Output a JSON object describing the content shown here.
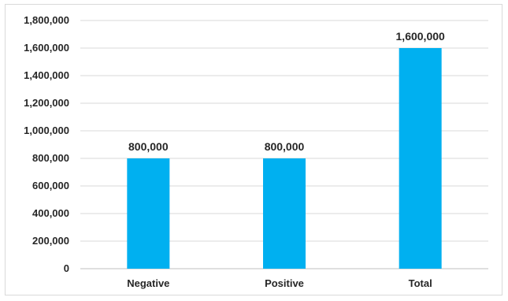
{
  "chart_data": {
    "type": "bar",
    "categories": [
      "Negative",
      "Positive",
      "Total"
    ],
    "values": [
      800000,
      800000,
      1600000
    ],
    "data_labels": [
      "800,000",
      "800,000",
      "1,600,000"
    ],
    "title": "",
    "xlabel": "",
    "ylabel": "",
    "ylim": [
      0,
      1800000
    ],
    "yticks": [
      0,
      200000,
      400000,
      600000,
      800000,
      1000000,
      1200000,
      1400000,
      1600000,
      1800000
    ],
    "ytick_labels": [
      "0",
      "200,000",
      "400,000",
      "600,000",
      "800,000",
      "1,000,000",
      "1,200,000",
      "1,400,000",
      "1,600,000",
      "1,800,000"
    ],
    "grid": true,
    "legend": "none",
    "colors": {
      "bar": "#00B0F0",
      "grid": "#d9d9d9",
      "text": "#262626"
    }
  }
}
